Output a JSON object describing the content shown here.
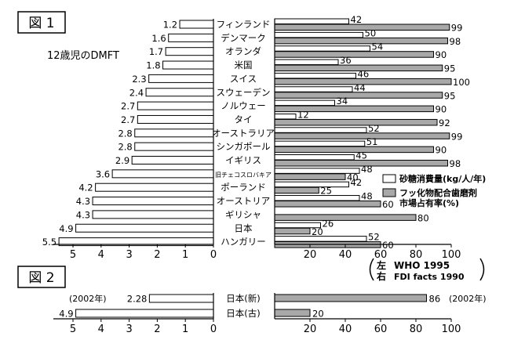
{
  "chart_data": [
    {
      "type": "bar",
      "title": "図 1",
      "left_axis_label": "12歳児のDMFT",
      "left_ticks": [
        5,
        4,
        3,
        2,
        1,
        0
      ],
      "right_ticks": [
        20,
        40,
        60,
        80,
        100
      ],
      "left_xlim": [
        0,
        5.5
      ],
      "right_xlim": [
        0,
        100
      ],
      "categories": [
        "フィンランド",
        "デンマーク",
        "オランダ",
        "米国",
        "スイス",
        "スウェーデン",
        "ノルウェー",
        "タイ",
        "オーストラリア",
        "シンガポール",
        "イギリス",
        "旧チェコスロバキア",
        "ポーランド",
        "オーストリア",
        "ギリシャ",
        "日本",
        "ハンガリー"
      ],
      "series": [
        {
          "name": "砂糖消費量(kg/人/年)",
          "side": "right",
          "fill": "white",
          "values": [
            42,
            50,
            54,
            36,
            46,
            44,
            34,
            12,
            52,
            51,
            45,
            48,
            42,
            48,
            null,
            26,
            52
          ]
        },
        {
          "name": "フッ化物配合歯磨剤 市場占有率(%)",
          "side": "right",
          "fill": "gray",
          "values": [
            99,
            98,
            90,
            95,
            100,
            95,
            90,
            92,
            99,
            90,
            98,
            40,
            25,
            60,
            80,
            20,
            60
          ]
        },
        {
          "name": "12歳児のDMFT",
          "side": "left",
          "fill": "white",
          "values": [
            1.2,
            1.6,
            1.7,
            1.8,
            2.3,
            2.4,
            2.7,
            2.7,
            2.8,
            2.8,
            2.9,
            3.6,
            4.2,
            4.3,
            4.3,
            4.9,
            5.5
          ]
        }
      ],
      "legend": [
        {
          "label": "砂糖消費量(kg/人/年)",
          "fill": "white"
        },
        {
          "label": "フッ化物配合歯磨剤",
          "label2": "市場占有率(%)",
          "fill": "gray"
        }
      ],
      "source": {
        "left_mark": "左",
        "left_text": "WHO 1995",
        "right_mark": "右",
        "right_text": "FDI facts 1990"
      }
    },
    {
      "type": "bar",
      "title": "図 2",
      "left_ticks": [
        5,
        4,
        3,
        2,
        1,
        0
      ],
      "right_ticks": [
        20,
        40,
        60,
        80,
        100
      ],
      "left_xlim": [
        0,
        5.5
      ],
      "right_xlim": [
        0,
        100
      ],
      "categories": [
        "日本(新)",
        "日本(古)"
      ],
      "series": [
        {
          "name": "12歳児のDMFT",
          "side": "left",
          "fill": "white",
          "values": [
            2.28,
            4.9
          ]
        },
        {
          "name": "フッ化物配合歯磨剤 市場占有率(%)",
          "side": "right",
          "fill": "gray",
          "values": [
            86,
            20
          ]
        }
      ],
      "annotations": {
        "left_year": "(2002年)",
        "right_year": "(2002年)"
      }
    }
  ],
  "colors": {
    "gray_bar": "#a8a8a8",
    "white_bar": "#ffffff",
    "stroke": "#000000"
  }
}
